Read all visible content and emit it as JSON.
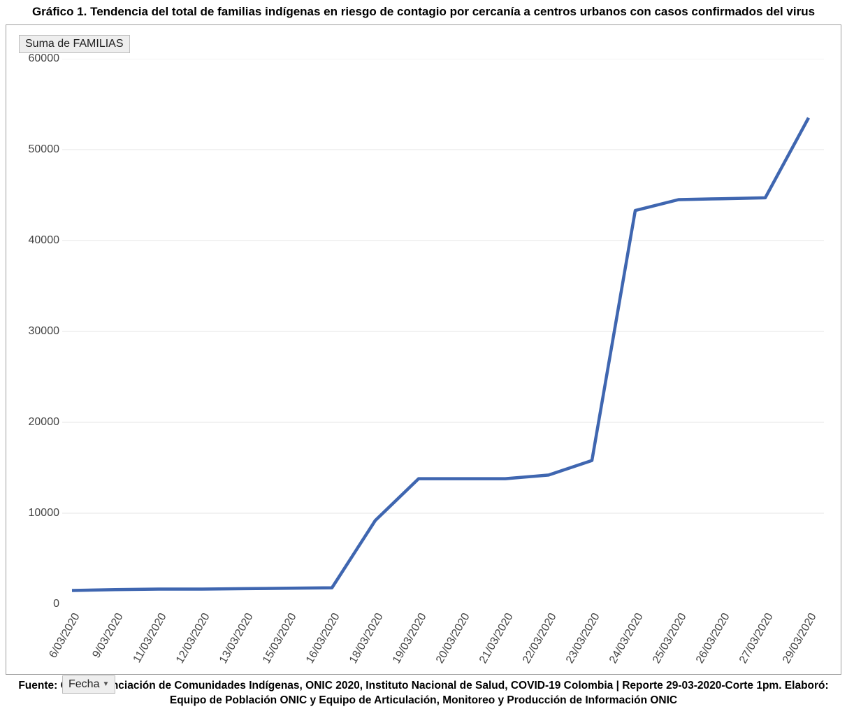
{
  "title": "Gráfico 1. Tendencia del total de familias indígenas en riesgo de contagio por cercanía a centros urbanos con casos confirmados del virus",
  "source": "Fuente: Georeferenciación de Comunidades Indígenas, ONIC 2020, Instituto Nacional de Salud, COVID-19 Colombia | Reporte 29-03-2020-Corte 1pm. Elaboró: Equipo de Población ONIC y Equipo de Articulación, Monitoreo y Producción de Información ONIC",
  "chart": {
    "type": "line",
    "legend_label": "Suma de FAMILIAS",
    "x_control_label": "Fecha",
    "background_color": "#ffffff",
    "frame_border_color": "#9e9e9e",
    "grid_color": "#e6e6e6",
    "line_color": "#3f66b0",
    "line_width": 4.5,
    "axis_label_color": "#444444",
    "axis_label_fontsize": 16,
    "title_fontsize": 17,
    "source_fontsize": 15.5,
    "y_axis": {
      "min": 0,
      "max": 60000,
      "tick_step": 10000,
      "ticks": [
        0,
        10000,
        20000,
        30000,
        40000,
        50000,
        60000
      ]
    },
    "categories": [
      "6/03/2020",
      "9/03/2020",
      "11/03/2020",
      "12/03/2020",
      "13/03/2020",
      "15/03/2020",
      "16/03/2020",
      "18/03/2020",
      "19/03/2020",
      "20/03/2020",
      "21/03/2020",
      "22/03/2020",
      "23/03/2020",
      "24/03/2020",
      "25/03/2020",
      "26/03/2020",
      "27/03/2020",
      "29/03/2020"
    ],
    "values": [
      1500,
      1600,
      1650,
      1650,
      1700,
      1750,
      1800,
      9200,
      13800,
      13800,
      13800,
      14200,
      15800,
      43300,
      44500,
      44600,
      44700,
      53500
    ]
  }
}
